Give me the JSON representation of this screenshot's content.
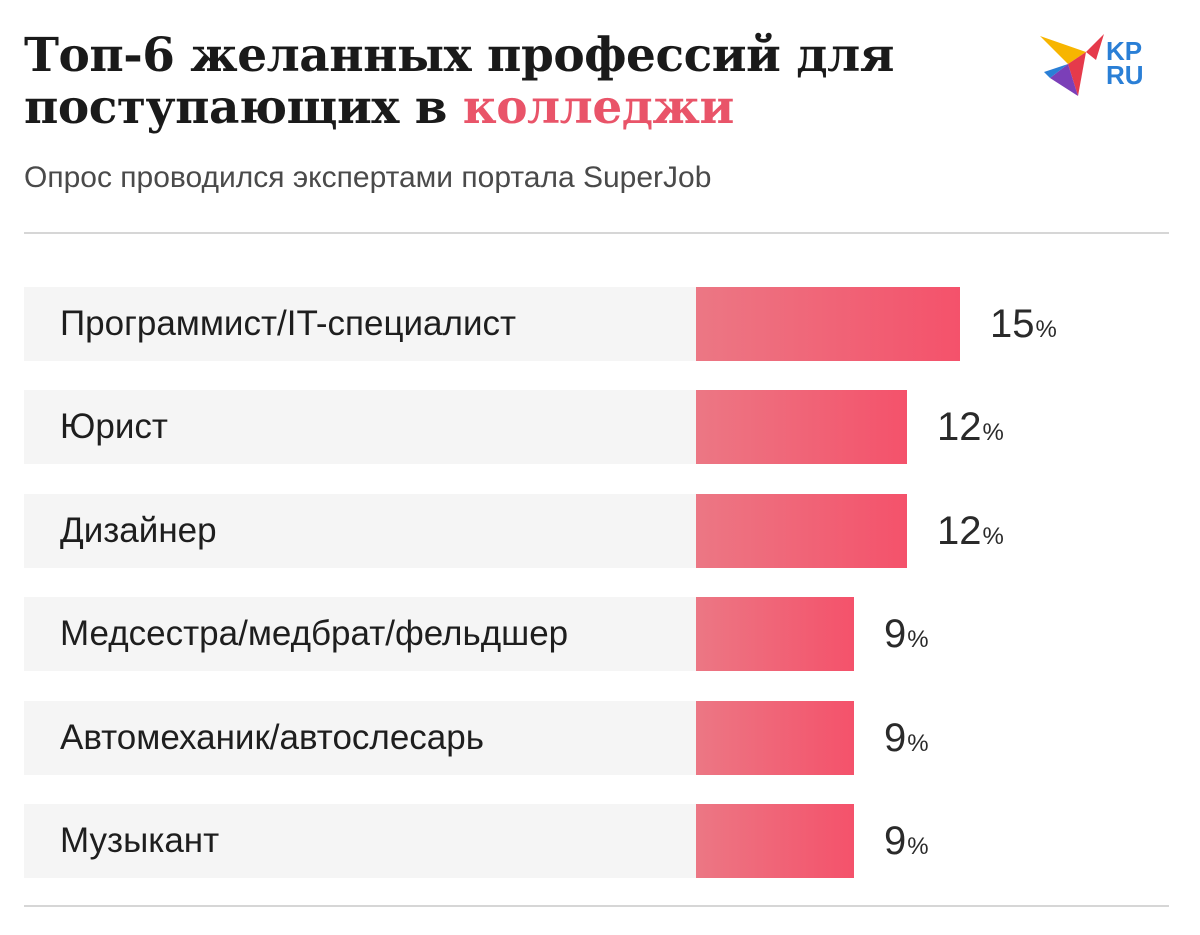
{
  "header": {
    "title_main": "Топ-6 желанных профессий для поступающих в ",
    "title_accent": "колледжи",
    "subtitle": "Опрос проводился экспертами портала SuperJob"
  },
  "logo": {
    "text_top": "KP",
    "text_bottom": "RU",
    "colors": [
      "#f7b500",
      "#e53a4b",
      "#7b3fb8",
      "#2a7fd6"
    ]
  },
  "colors": {
    "accent": "#e95469",
    "bar_start": "#ec7784",
    "bar_end": "#f4526b",
    "row_background": "#f5f5f5"
  },
  "chart_data": {
    "type": "bar",
    "orientation": "horizontal",
    "categories": [
      "Программист/IT-специалист",
      "Юрист",
      "Дизайнер",
      "Медсестра/медбрат/фельдшер",
      "Автомеханик/автослесарь",
      "Музыкант"
    ],
    "values": [
      15,
      12,
      12,
      9,
      9,
      9
    ],
    "unit": "%",
    "title": "Топ-6 желанных профессий для поступающих в колледжи",
    "subtitle": "Опрос проводился экспертами портала SuperJob",
    "xlabel": "",
    "ylabel": "",
    "grid": false,
    "legend": "none"
  }
}
